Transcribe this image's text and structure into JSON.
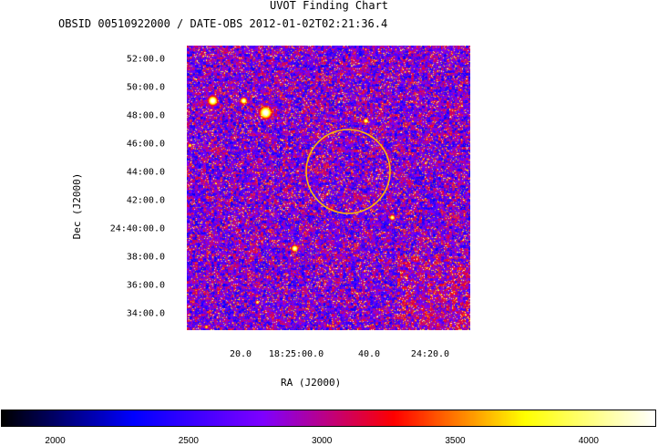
{
  "header": {
    "title": "UVOT Finding Chart",
    "subtitle": "OBSID 00510922000 / DATE-OBS 2012-01-02T02:21:36.4"
  },
  "chart_data": {
    "type": "heatmap",
    "title": "UVOT Finding Chart",
    "subtitle": "OBSID 00510922000 / DATE-OBS 2012-01-02T02:21:36.4",
    "xlabel": "RA (J2000)",
    "ylabel": "Dec (J2000)",
    "x_ticks": [
      "20.0",
      "18:25:00.0",
      "40.0",
      "24:20.0"
    ],
    "y_ticks": [
      "52:00.0",
      "50:00.0",
      "48:00.0",
      "46:00.0",
      "44:00.0",
      "42:00.0",
      "24:40:00.0",
      "38:00.0",
      "36:00.0",
      "34:00.0"
    ],
    "colorbar": {
      "ticks": [
        2000,
        2500,
        3000,
        3500,
        4000
      ],
      "range": [
        1800,
        4250
      ],
      "colormap": [
        "#000000",
        "#0000ff",
        "#7f00ff",
        "#ff0000",
        "#ffff00",
        "#ffffff"
      ]
    },
    "background": "#1c1cc8",
    "circle_color": "#ffb800",
    "grid": false
  }
}
